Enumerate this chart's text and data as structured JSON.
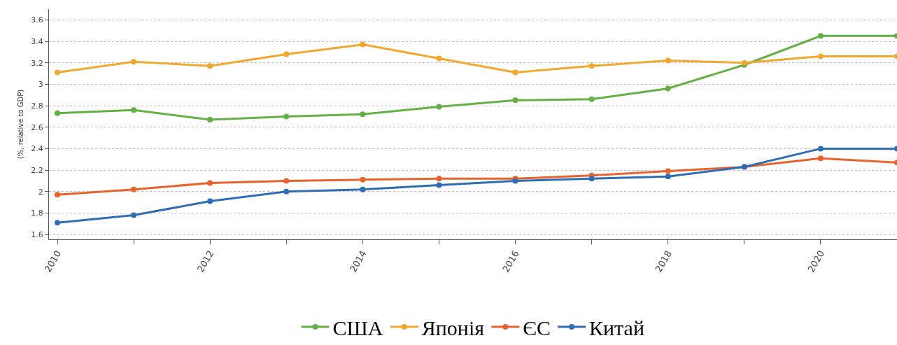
{
  "chart_data": {
    "type": "line",
    "ylabel": "(%, relative to GDP)",
    "x": [
      2010,
      2011,
      2012,
      2013,
      2014,
      2015,
      2016,
      2017,
      2018,
      2019,
      2020,
      2021
    ],
    "series": [
      {
        "name": "США",
        "color": "#65b045",
        "values": [
          2.73,
          2.76,
          2.67,
          2.7,
          2.72,
          2.79,
          2.85,
          2.86,
          2.96,
          3.18,
          3.45,
          3.45
        ]
      },
      {
        "name": "Японія",
        "color": "#f0a830",
        "values": [
          3.11,
          3.21,
          3.17,
          3.28,
          3.37,
          3.24,
          3.11,
          3.17,
          3.22,
          3.2,
          3.26,
          3.26
        ]
      },
      {
        "name": "ЄС",
        "color": "#e8632b",
        "values": [
          1.97,
          2.02,
          2.08,
          2.1,
          2.11,
          2.12,
          2.12,
          2.15,
          2.19,
          2.23,
          2.31,
          2.27
        ]
      },
      {
        "name": "Китай",
        "color": "#2f6db5",
        "values": [
          1.71,
          1.78,
          1.91,
          2.0,
          2.02,
          2.06,
          2.1,
          2.12,
          2.14,
          2.23,
          2.4,
          2.4
        ]
      }
    ],
    "xlim": [
      2009.89,
      2021
    ],
    "xticks": [
      2010,
      {
        "value": 2011,
        "label": null
      },
      2012,
      {
        "value": 2013,
        "label": null
      },
      2014,
      {
        "value": 2015,
        "label": null
      },
      2016,
      {
        "value": 2017,
        "label": null
      },
      2018,
      {
        "value": 2019,
        "label": null
      },
      2020,
      {
        "value": 2021,
        "label": null
      }
    ],
    "ylim": [
      1.555,
      3.7
    ],
    "yticks": [
      1.6,
      1.8,
      2,
      2.2,
      2.4,
      2.6,
      2.8,
      3,
      3.2,
      3.4,
      3.6
    ],
    "grid": "y",
    "legend": "bottom",
    "marker": "circle",
    "line_style": "solid"
  }
}
